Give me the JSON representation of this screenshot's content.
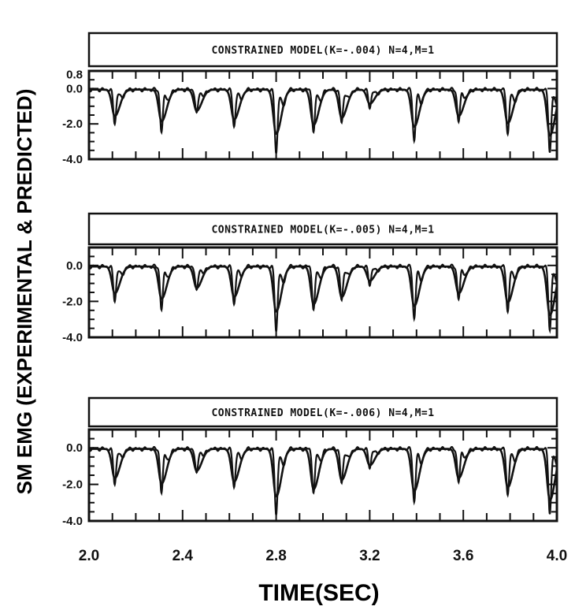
{
  "figure": {
    "ylabel": "SM EMG (EXPERIMENTAL & PREDICTED)",
    "xlabel": "TIME(SEC)"
  },
  "chart_data": [
    {
      "type": "line",
      "title": "CONSTRAINED MODEL(K=-.004) N=4,M=1",
      "xlabel": "TIME(SEC)",
      "ylabel": "SM EMG (EXPERIMENTAL & PREDICTED)",
      "xlim": [
        2.0,
        4.0
      ],
      "ylim": [
        -4.0,
        1.0
      ],
      "x_ticks": [
        "2.0",
        "2.4",
        "2.8",
        "3.2",
        "3.6",
        "4.0"
      ],
      "y_ticks": [
        "0.8",
        "0.0",
        "-2.0",
        "-4.0"
      ],
      "grid": false,
      "bursts": [
        {
          "t": 2.11,
          "exp": -1.9,
          "pred": -1.5
        },
        {
          "t": 2.31,
          "exp": -2.4,
          "pred": -1.8
        },
        {
          "t": 2.46,
          "exp": -1.4,
          "pred": -1.2
        },
        {
          "t": 2.62,
          "exp": -2.1,
          "pred": -1.7
        },
        {
          "t": 2.8,
          "exp": -3.6,
          "pred": -2.5
        },
        {
          "t": 2.96,
          "exp": -2.4,
          "pred": -2.0
        },
        {
          "t": 3.08,
          "exp": -1.9,
          "pred": -1.6
        },
        {
          "t": 3.2,
          "exp": -1.0,
          "pred": -0.8
        },
        {
          "t": 3.39,
          "exp": -2.9,
          "pred": -2.1
        },
        {
          "t": 3.58,
          "exp": -1.8,
          "pred": -1.5
        },
        {
          "t": 3.79,
          "exp": -2.5,
          "pred": -1.9
        },
        {
          "t": 3.97,
          "exp": -3.5,
          "pred": -2.6
        }
      ]
    },
    {
      "type": "line",
      "title": "CONSTRAINED MODEL(K=-.005) N=4,M=1",
      "xlabel": "TIME(SEC)",
      "ylabel": "SM EMG (EXPERIMENTAL & PREDICTED)",
      "xlim": [
        2.0,
        4.0
      ],
      "ylim": [
        -4.0,
        1.0
      ],
      "x_ticks": [
        "2.0",
        "2.4",
        "2.8",
        "3.2",
        "3.6",
        "4.0"
      ],
      "y_ticks": [
        "0.0",
        "-2.0",
        "-4.0"
      ],
      "grid": false,
      "bursts": [
        {
          "t": 2.11,
          "exp": -1.9,
          "pred": -1.5
        },
        {
          "t": 2.31,
          "exp": -2.4,
          "pred": -1.8
        },
        {
          "t": 2.46,
          "exp": -1.4,
          "pred": -1.2
        },
        {
          "t": 2.62,
          "exp": -2.1,
          "pred": -1.7
        },
        {
          "t": 2.8,
          "exp": -3.6,
          "pred": -2.5
        },
        {
          "t": 2.96,
          "exp": -2.4,
          "pred": -2.1
        },
        {
          "t": 3.08,
          "exp": -1.9,
          "pred": -1.7
        },
        {
          "t": 3.2,
          "exp": -1.0,
          "pred": -0.8
        },
        {
          "t": 3.39,
          "exp": -2.9,
          "pred": -2.2
        },
        {
          "t": 3.58,
          "exp": -1.8,
          "pred": -1.5
        },
        {
          "t": 3.79,
          "exp": -2.5,
          "pred": -2.0
        },
        {
          "t": 3.97,
          "exp": -3.5,
          "pred": -2.7
        }
      ]
    },
    {
      "type": "line",
      "title": "CONSTRAINED MODEL(K=-.006) N=4,M=1",
      "xlabel": "TIME(SEC)",
      "ylabel": "SM EMG (EXPERIMENTAL & PREDICTED)",
      "xlim": [
        2.0,
        4.0
      ],
      "ylim": [
        -4.0,
        1.0
      ],
      "x_ticks": [
        "2.0",
        "2.4",
        "2.8",
        "3.2",
        "3.6",
        "4.0"
      ],
      "y_ticks": [
        "0.0",
        "-2.0",
        "-4.0"
      ],
      "grid": false,
      "bursts": [
        {
          "t": 2.11,
          "exp": -1.9,
          "pred": -1.6
        },
        {
          "t": 2.31,
          "exp": -2.4,
          "pred": -1.9
        },
        {
          "t": 2.46,
          "exp": -1.4,
          "pred": -1.2
        },
        {
          "t": 2.62,
          "exp": -2.1,
          "pred": -1.8
        },
        {
          "t": 2.8,
          "exp": -3.6,
          "pred": -2.6
        },
        {
          "t": 2.96,
          "exp": -2.4,
          "pred": -2.2
        },
        {
          "t": 3.08,
          "exp": -1.9,
          "pred": -1.7
        },
        {
          "t": 3.2,
          "exp": -1.0,
          "pred": -0.9
        },
        {
          "t": 3.39,
          "exp": -2.9,
          "pred": -2.3
        },
        {
          "t": 3.58,
          "exp": -1.8,
          "pred": -1.6
        },
        {
          "t": 3.79,
          "exp": -2.5,
          "pred": -2.1
        },
        {
          "t": 3.97,
          "exp": -3.5,
          "pred": -2.8
        }
      ]
    }
  ]
}
